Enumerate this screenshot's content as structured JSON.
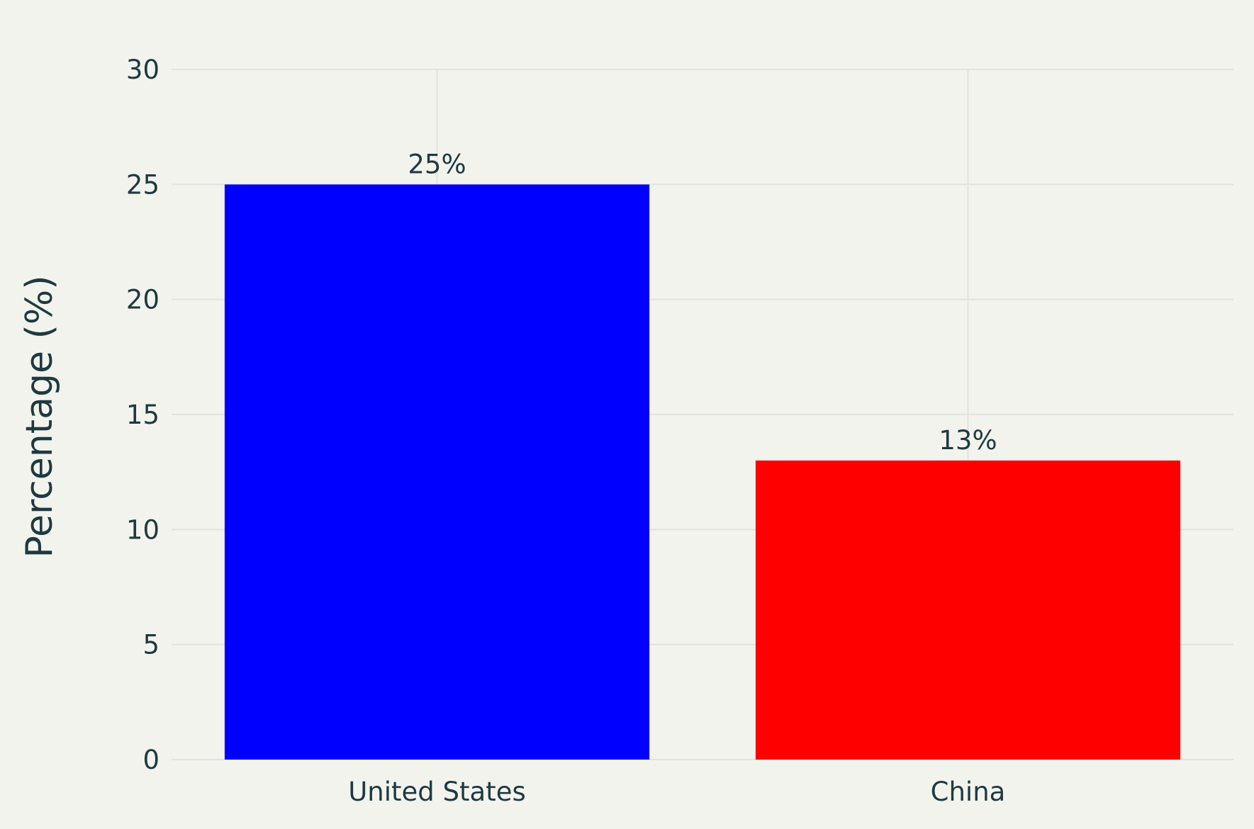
{
  "chart_data": {
    "type": "bar",
    "title": "",
    "xlabel": "",
    "ylabel": "Percentage (%)",
    "categories": [
      "United States",
      "China"
    ],
    "values": [
      25,
      13
    ],
    "data_labels": [
      "25%",
      "13%"
    ],
    "colors": [
      "#0000ff",
      "#ff0000"
    ],
    "ylim": [
      0,
      30
    ],
    "yticks": [
      0,
      5,
      10,
      15,
      20,
      25,
      30
    ],
    "grid": true,
    "legend": "none"
  },
  "colors": {
    "background": "#f3f3ee",
    "grid": "#e3e3de",
    "text": "#1e3a3f"
  }
}
